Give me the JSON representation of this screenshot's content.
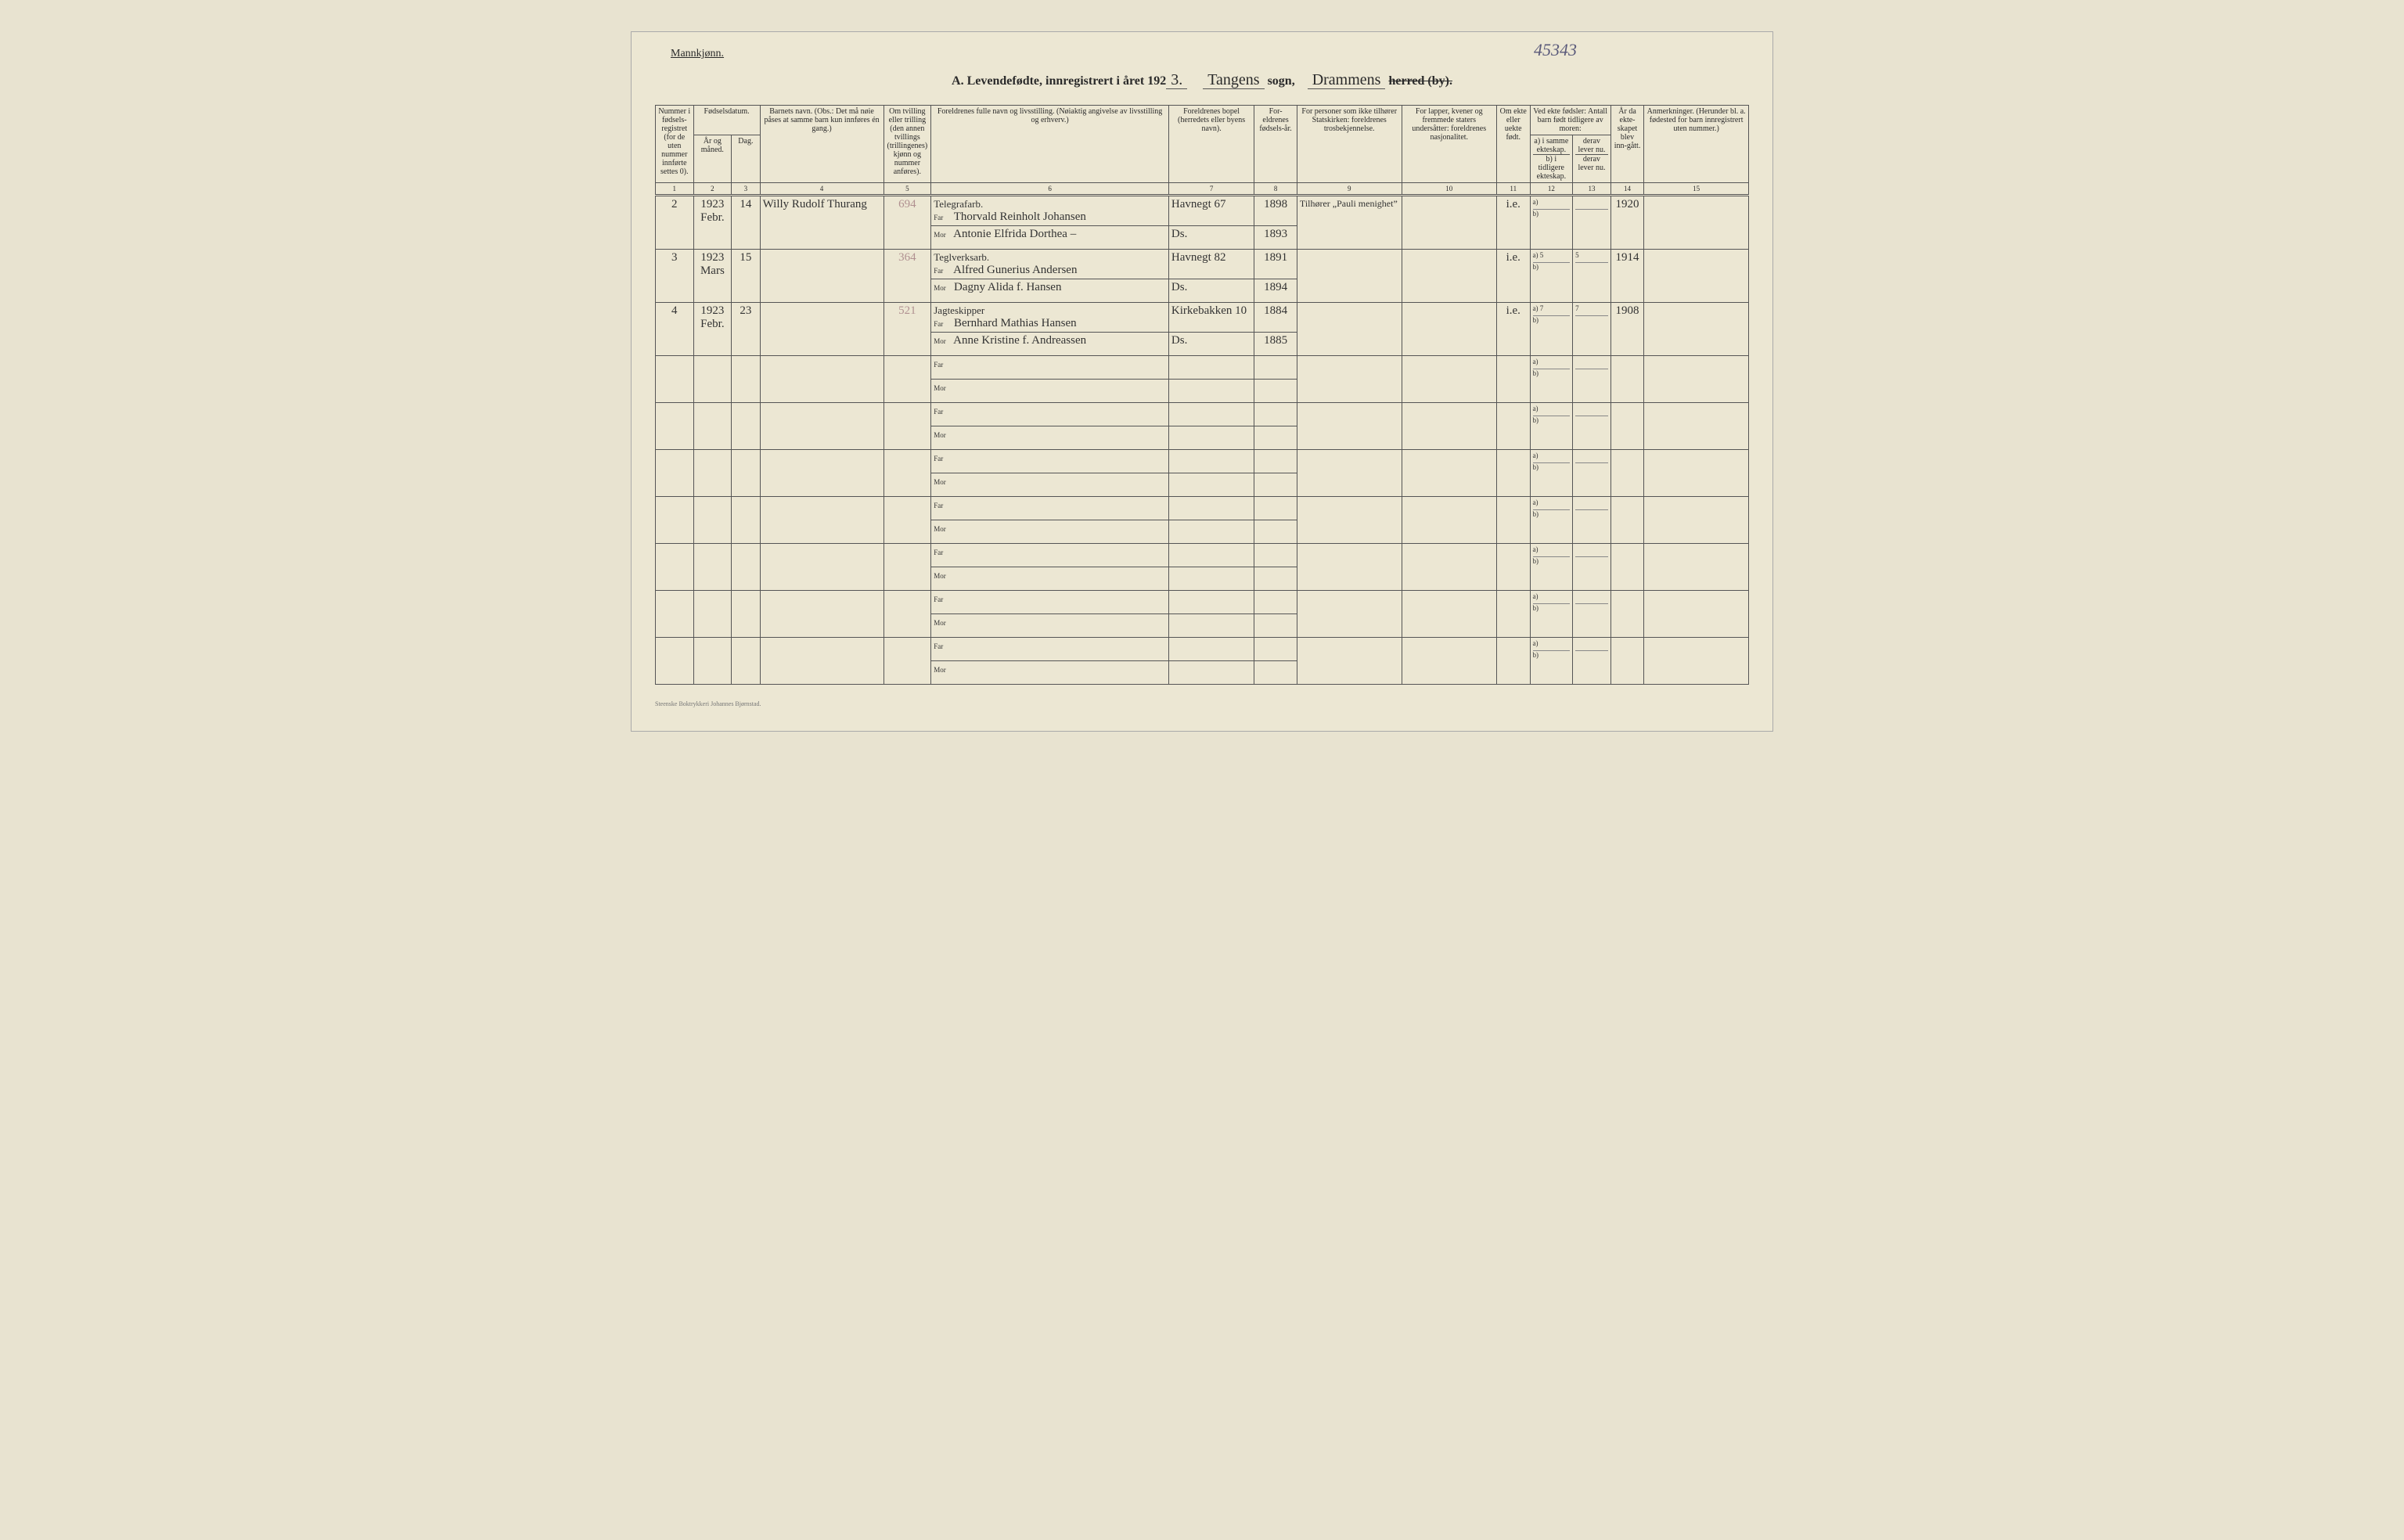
{
  "corner_label": "Mannkjønn.",
  "page_number_hw": "45343",
  "header": {
    "prefix": "A. Levendefødte, innregistrert i året 192",
    "year_suffix_hw": "3.",
    "sogn_hw": "Tangens",
    "sogn_label": "sogn,",
    "herred_hw": "Drammens",
    "herred_label": "herred (by).",
    "herred_struck": true
  },
  "columns": {
    "c1": "Nummer i fødsels-registret (for de uten nummer innførte settes 0).",
    "c2_group": "Fødselsdatum.",
    "c2a": "År og måned.",
    "c2b": "Dag.",
    "c4": "Barnets navn.\n(Obs.: Det må nøie påses at samme barn kun innføres én gang.)",
    "c5": "Om tvilling eller trilling (den annen tvillings (trillingenes) kjønn og nummer anføres).",
    "c6": "Foreldrenes fulle navn og livsstilling.\n(Nøiaktig angivelse av livsstilling og erhverv.)",
    "c7": "Foreldrenes bopel (herredets eller byens navn).",
    "c8": "For-eldrenes fødsels-år.",
    "c9": "For personer som ikke tilhører Statskirken: foreldrenes trosbekjennelse.",
    "c10": "For lapper, kvener og fremmede staters undersåtter: foreldrenes nasjonalitet.",
    "c11": "Om ekte eller uekte født.",
    "c12_group": "Ved ekte fødsler: Antall barn født tidligere av moren:",
    "c12a": "a) i samme ekteskap.",
    "c12b": "b) i tidligere ekteskap.",
    "c13_group": "",
    "c13a": "derav lever nu.",
    "c13b": "derav lever nu.",
    "c14": "År da ekte-skapet blev inn-gått.",
    "c15": "Anmerkninger.\n(Herunder bl. a. fødested for barn innregistrert uten nummer.)"
  },
  "col_numbers": [
    "1",
    "2",
    "3",
    "4",
    "5",
    "6",
    "7",
    "8",
    "9",
    "10",
    "11",
    "12",
    "13",
    "14",
    "15"
  ],
  "rows": [
    {
      "num": "2",
      "yr_mo": "1923\nFebr.",
      "day": "14",
      "child": "Willy Rudolf Thurang",
      "twin": "694",
      "occ": "Telegrafarb.",
      "far": "Thorvald Reinholt Johansen",
      "mor": "Antonie Elfrida Dorthea –",
      "bopel_far": "Havnegt 67",
      "bopel_mor": "Ds.",
      "fy_far": "1898",
      "fy_mor": "1893",
      "tros": "Tilhører „Pauli menighet”",
      "nasj": "",
      "ekte": "i.e.",
      "a12": "",
      "b12": "",
      "a13": "",
      "b13": "",
      "c14": "1920"
    },
    {
      "num": "3",
      "yr_mo": "1923\nMars",
      "day": "15",
      "child": "",
      "twin": "364",
      "occ": "Teglverksarb.",
      "far": "Alfred Gunerius Andersen",
      "mor": "Dagny Alida f. Hansen",
      "bopel_far": "Havnegt 82",
      "bopel_mor": "Ds.",
      "fy_far": "1891",
      "fy_mor": "1894",
      "tros": "",
      "nasj": "",
      "ekte": "i.e.",
      "a12": "5",
      "b12": "",
      "a13": "5",
      "b13": "",
      "c14": "1914"
    },
    {
      "num": "4",
      "yr_mo": "1923\nFebr.",
      "day": "23",
      "child": "",
      "twin": "521",
      "occ": "Jagteskipper",
      "far": "Bernhard Mathias Hansen",
      "mor": "Anne Kristine f. Andreassen",
      "bopel_far": "Kirkebakken 10",
      "bopel_mor": "Ds.",
      "fy_far": "1884",
      "fy_mor": "1885",
      "tros": "",
      "nasj": "",
      "ekte": "i.e.",
      "a12": "7",
      "b12": "",
      "a13": "7",
      "b13": "",
      "c14": "1908"
    }
  ],
  "empty_rows": 7,
  "far_label": "Far",
  "mor_label": "Mor",
  "ab_labels": {
    "a": "a)",
    "b": "b)"
  },
  "footer": "Steenske Boktrykkeri Johannes Bjørnstad."
}
